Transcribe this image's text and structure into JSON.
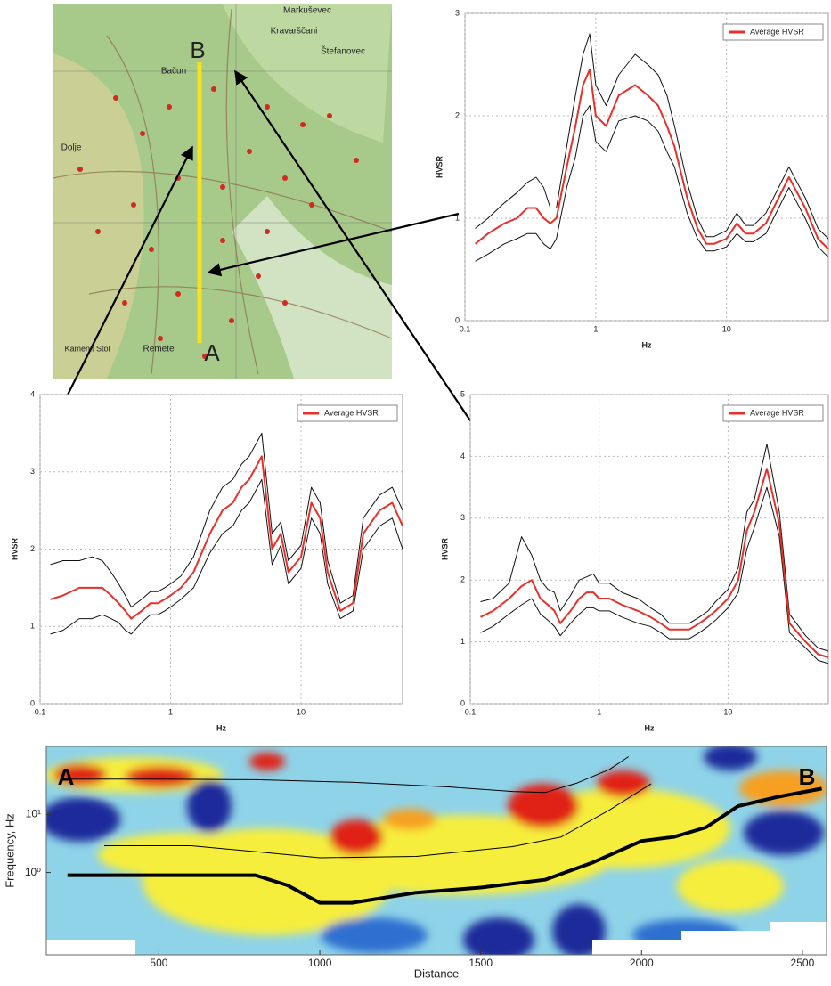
{
  "chart_data": [
    {
      "type": "line",
      "xlog": true,
      "grid": true,
      "legend": "upper right",
      "xlabel": "Hz",
      "ylabel": "HVSR",
      "xlim": [
        0.1,
        60
      ],
      "ylim": [
        0,
        3
      ],
      "xticks": [
        0.1,
        1,
        10
      ],
      "yticks": [
        0,
        1,
        2,
        3
      ],
      "x": [
        0.12,
        0.15,
        0.2,
        0.25,
        0.3,
        0.35,
        0.4,
        0.45,
        0.5,
        0.6,
        0.7,
        0.8,
        0.9,
        1,
        1.2,
        1.5,
        2,
        2.5,
        3,
        3.5,
        4,
        5,
        6,
        7,
        8,
        10,
        12,
        14,
        16,
        20,
        25,
        30,
        40,
        50,
        60
      ],
      "series": [
        {
          "name": "Average HVSR",
          "color": "#e8302a",
          "values": [
            0.75,
            0.85,
            0.95,
            1.0,
            1.1,
            1.1,
            1.0,
            0.95,
            1.0,
            1.5,
            1.9,
            2.3,
            2.45,
            2.0,
            1.9,
            2.2,
            2.3,
            2.2,
            2.1,
            1.9,
            1.7,
            1.2,
            0.9,
            0.75,
            0.75,
            0.8,
            0.95,
            0.85,
            0.85,
            0.95,
            1.2,
            1.4,
            1.1,
            0.8,
            0.7
          ]
        },
        {
          "color": "#111111",
          "values": [
            0.9,
            1.0,
            1.15,
            1.25,
            1.35,
            1.4,
            1.3,
            1.1,
            1.1,
            1.7,
            2.2,
            2.6,
            2.8,
            2.3,
            2.1,
            2.4,
            2.6,
            2.5,
            2.4,
            2.2,
            1.9,
            1.35,
            1.0,
            0.82,
            0.82,
            0.88,
            1.05,
            0.93,
            0.93,
            1.05,
            1.3,
            1.5,
            1.2,
            0.9,
            0.8
          ]
        },
        {
          "color": "#111111",
          "values": [
            0.58,
            0.65,
            0.75,
            0.8,
            0.85,
            0.85,
            0.75,
            0.7,
            0.8,
            1.3,
            1.6,
            2.0,
            2.1,
            1.75,
            1.65,
            1.95,
            2.0,
            1.95,
            1.85,
            1.65,
            1.5,
            1.05,
            0.8,
            0.68,
            0.68,
            0.72,
            0.85,
            0.77,
            0.77,
            0.85,
            1.1,
            1.3,
            1.0,
            0.72,
            0.62
          ]
        }
      ]
    },
    {
      "type": "line",
      "xlog": true,
      "grid": true,
      "legend": "upper right",
      "xlabel": "Hz",
      "ylabel": "HVSR",
      "xlim": [
        0.1,
        60
      ],
      "ylim": [
        0,
        4
      ],
      "xticks": [
        0.1,
        1,
        10
      ],
      "yticks": [
        0,
        1,
        2,
        3,
        4
      ],
      "x": [
        0.12,
        0.15,
        0.2,
        0.25,
        0.3,
        0.35,
        0.4,
        0.45,
        0.5,
        0.6,
        0.7,
        0.8,
        0.9,
        1,
        1.2,
        1.5,
        2,
        2.5,
        3,
        3.5,
        4,
        5,
        6,
        7,
        8,
        10,
        12,
        14,
        16,
        20,
        25,
        30,
        40,
        50,
        60
      ],
      "series": [
        {
          "name": "Average HVSR",
          "color": "#e8302a",
          "values": [
            1.35,
            1.4,
            1.5,
            1.5,
            1.5,
            1.4,
            1.3,
            1.2,
            1.1,
            1.2,
            1.3,
            1.3,
            1.35,
            1.4,
            1.5,
            1.7,
            2.2,
            2.5,
            2.6,
            2.8,
            2.9,
            3.2,
            2.0,
            2.2,
            1.7,
            1.9,
            2.6,
            2.4,
            1.7,
            1.2,
            1.3,
            2.2,
            2.5,
            2.6,
            2.3
          ]
        },
        {
          "color": "#111111",
          "values": [
            1.8,
            1.85,
            1.85,
            1.9,
            1.85,
            1.7,
            1.55,
            1.4,
            1.25,
            1.35,
            1.45,
            1.45,
            1.5,
            1.55,
            1.65,
            1.9,
            2.5,
            2.8,
            2.9,
            3.1,
            3.2,
            3.5,
            2.2,
            2.35,
            1.85,
            2.05,
            2.8,
            2.6,
            1.85,
            1.3,
            1.4,
            2.4,
            2.7,
            2.8,
            2.5
          ]
        },
        {
          "color": "#111111",
          "values": [
            0.9,
            0.95,
            1.1,
            1.1,
            1.15,
            1.1,
            1.05,
            0.95,
            0.9,
            1.05,
            1.15,
            1.15,
            1.2,
            1.25,
            1.35,
            1.5,
            1.95,
            2.2,
            2.3,
            2.5,
            2.6,
            2.9,
            1.8,
            2.05,
            1.55,
            1.75,
            2.4,
            2.2,
            1.55,
            1.1,
            1.2,
            2.0,
            2.3,
            2.4,
            2.0
          ]
        }
      ]
    },
    {
      "type": "line",
      "xlog": true,
      "grid": true,
      "legend": "upper right",
      "xlabel": "Hz",
      "ylabel": "HVSR",
      "xlim": [
        0.1,
        60
      ],
      "ylim": [
        0,
        5
      ],
      "xticks": [
        0.1,
        1,
        10
      ],
      "yticks": [
        0,
        1,
        2,
        3,
        4,
        5
      ],
      "x": [
        0.12,
        0.15,
        0.2,
        0.25,
        0.3,
        0.35,
        0.4,
        0.45,
        0.5,
        0.6,
        0.7,
        0.8,
        0.9,
        1,
        1.2,
        1.5,
        2,
        2.5,
        3,
        3.5,
        4,
        5,
        6,
        7,
        8,
        10,
        12,
        14,
        16,
        20,
        25,
        30,
        40,
        50,
        60
      ],
      "series": [
        {
          "name": "Average HVSR",
          "color": "#e8302a",
          "values": [
            1.4,
            1.5,
            1.7,
            1.9,
            2.0,
            1.7,
            1.6,
            1.5,
            1.3,
            1.5,
            1.7,
            1.8,
            1.8,
            1.7,
            1.7,
            1.6,
            1.5,
            1.4,
            1.3,
            1.2,
            1.2,
            1.2,
            1.3,
            1.4,
            1.5,
            1.7,
            2.0,
            2.8,
            3.1,
            3.8,
            2.9,
            1.3,
            1.0,
            0.8,
            0.75
          ]
        },
        {
          "color": "#111111",
          "values": [
            1.65,
            1.7,
            1.95,
            2.7,
            2.4,
            2.0,
            1.85,
            1.8,
            1.5,
            1.75,
            2.0,
            2.05,
            2.1,
            1.95,
            1.95,
            1.8,
            1.7,
            1.55,
            1.45,
            1.3,
            1.3,
            1.3,
            1.4,
            1.5,
            1.65,
            1.85,
            2.2,
            3.1,
            3.3,
            4.2,
            3.1,
            1.45,
            1.1,
            0.9,
            0.85
          ]
        },
        {
          "color": "#111111",
          "values": [
            1.15,
            1.25,
            1.45,
            1.6,
            1.7,
            1.45,
            1.35,
            1.25,
            1.1,
            1.3,
            1.45,
            1.55,
            1.55,
            1.5,
            1.5,
            1.4,
            1.3,
            1.25,
            1.15,
            1.05,
            1.05,
            1.05,
            1.15,
            1.25,
            1.35,
            1.55,
            1.8,
            2.5,
            2.85,
            3.5,
            2.7,
            1.15,
            0.9,
            0.7,
            0.65
          ]
        }
      ]
    },
    {
      "type": "contour",
      "ylog": true,
      "xlabel": "Distance",
      "ylabel": "Frequency, Hz",
      "xlim": [
        150,
        2575
      ],
      "ylim": [
        0.038,
        150
      ],
      "xticks": [
        500,
        1000,
        1500,
        2000,
        2500
      ],
      "yticks": [
        {
          "value": 1,
          "label": "10⁰"
        },
        {
          "value": 10,
          "label": "10¹"
        }
      ],
      "annotations": [
        "A",
        "B"
      ],
      "series": [
        {
          "color": "#000000",
          "width": 4,
          "x": [
            216,
            500,
            800,
            900,
            1000,
            1100,
            1300,
            1500,
            1700,
            1850,
            2000,
            2100,
            2200,
            2300,
            2420,
            2560
          ],
          "values": [
            0.9,
            0.9,
            0.9,
            0.6,
            0.3,
            0.3,
            0.45,
            0.55,
            0.75,
            1.5,
            3.5,
            4.1,
            6,
            14,
            20,
            28
          ]
        },
        {
          "color": "#000000",
          "width": 1,
          "x": [
            216,
            500,
            800,
            1100,
            1400,
            1600,
            1700,
            1800,
            1900,
            1960
          ],
          "values": [
            41,
            41,
            40,
            36,
            30,
            25,
            24,
            35,
            60,
            100
          ]
        },
        {
          "color": "#000000",
          "width": 1,
          "x": [
            330,
            600,
            800,
            1000,
            1300,
            1600,
            1750,
            1900,
            2030
          ],
          "values": [
            2.9,
            2.9,
            2.3,
            1.8,
            1.9,
            2.8,
            4.1,
            12,
            34
          ]
        }
      ]
    }
  ],
  "map": {
    "labels": [
      "B",
      "A",
      "Markuševec",
      "Kravarščani",
      "Štefanovec",
      "Bačun",
      "Dolje",
      "Remete",
      "Kamenit Stol"
    ]
  }
}
